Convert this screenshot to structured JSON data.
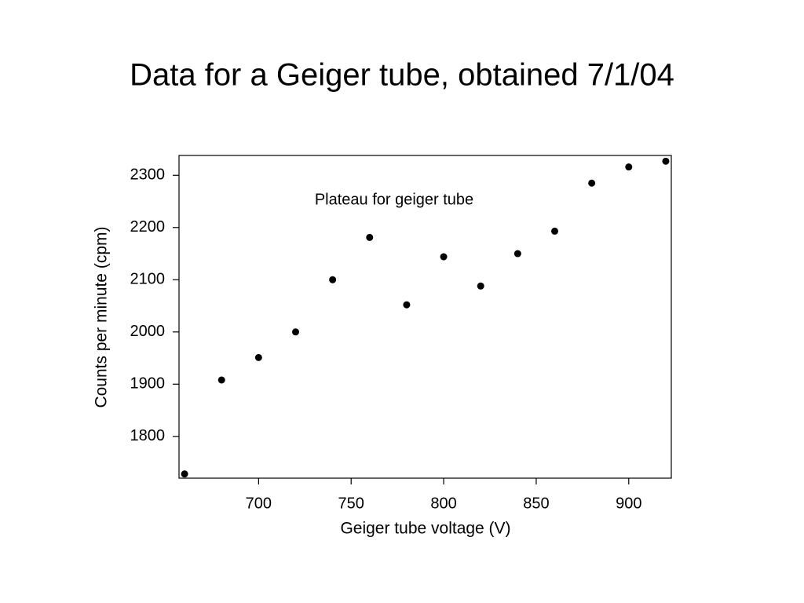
{
  "chart_data": {
    "type": "scatter",
    "title": "Data for a Geiger tube, obtained 7/1/04",
    "x_label": "Geiger tube voltage (V)",
    "y_label": "Counts per minute (cpm)",
    "annotation": "Plateau for geiger tube",
    "x": [
      660,
      680,
      700,
      720,
      740,
      760,
      780,
      800,
      820,
      840,
      860,
      880,
      900,
      920
    ],
    "values": [
      1728,
      1908,
      1951,
      2000,
      2100,
      2181,
      2052,
      2144,
      2088,
      2150,
      2193,
      2285,
      2316,
      2327
    ],
    "color": "#000000",
    "xlim": [
      657,
      923
    ],
    "xticks": [
      700,
      750,
      800,
      850,
      900
    ],
    "ylim": [
      1720,
      2338
    ],
    "yticks": [
      1800,
      1900,
      2000,
      2100,
      2200,
      2300
    ],
    "grid": false
  }
}
